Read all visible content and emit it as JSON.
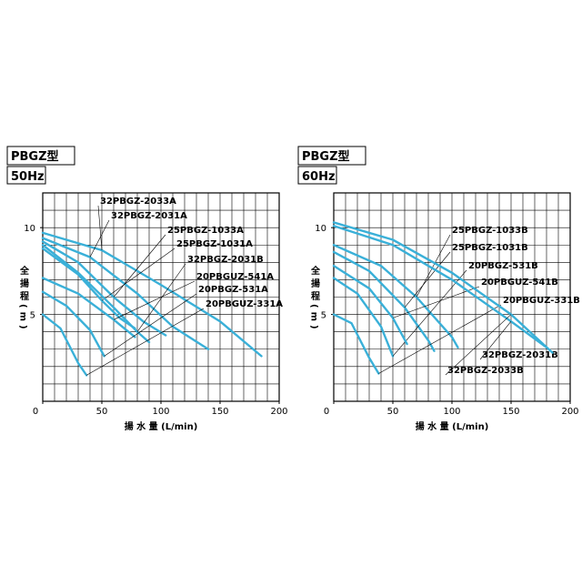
{
  "chart_data": [
    {
      "type": "line",
      "title": "PBGZ型",
      "subtitle": "50Hz",
      "xlabel": "揚 水 量 (L/min)",
      "ylabel": "全揚程(m)",
      "xlim": [
        0,
        200
      ],
      "ylim": [
        0,
        12
      ],
      "xticks": [
        0,
        50,
        100,
        150,
        200
      ],
      "yticks": [
        5,
        10
      ],
      "xgrid": [
        10,
        20,
        30,
        40,
        50,
        60,
        70,
        80,
        90,
        100,
        110,
        120,
        130,
        140,
        150,
        160,
        170,
        180,
        190
      ],
      "ygrid": [
        1,
        2,
        3,
        4,
        5,
        6,
        7,
        8,
        9,
        10,
        11
      ],
      "series": [
        {
          "name": "32PBGZ-2033A",
          "color": "#3ab0d8",
          "x": [
            0,
            50,
            100,
            150,
            185
          ],
          "values": [
            9.7,
            8.7,
            6.7,
            4.6,
            2.6
          ]
        },
        {
          "name": "32PBGZ-2031A",
          "color": "#3ab0d8",
          "x": [
            0,
            40,
            80,
            110,
            140
          ],
          "values": [
            9.4,
            8.3,
            6.2,
            4.3,
            3.0
          ]
        },
        {
          "name": "25PBGZ-1033A",
          "color": "#3ab0d8",
          "x": [
            0,
            30,
            60,
            85,
            104
          ],
          "values": [
            9.2,
            8.0,
            6.0,
            4.6,
            3.8
          ]
        },
        {
          "name": "25PBGZ-1031A",
          "color": "#3ab0d8",
          "x": [
            0,
            30,
            50,
            65,
            78
          ],
          "values": [
            8.8,
            7.3,
            5.8,
            4.8,
            4.2
          ]
        },
        {
          "name": "32PBGZ-2031B",
          "color": "#3ab0d8",
          "x": [
            0,
            30,
            60,
            80,
            90
          ],
          "values": [
            9.0,
            7.4,
            5.4,
            4.0,
            3.4
          ]
        },
        {
          "name": "20PBGUZ-541A",
          "color": "#3ab0d8",
          "x": [
            0,
            30,
            60,
            78
          ],
          "values": [
            7.1,
            6.2,
            4.7,
            3.7
          ]
        },
        {
          "name": "20PBGZ-531A",
          "color": "#3ab0d8",
          "x": [
            0,
            20,
            40,
            52
          ],
          "values": [
            6.3,
            5.5,
            4.1,
            2.6
          ]
        },
        {
          "name": "20PBGUZ-331A",
          "color": "#3ab0d8",
          "x": [
            0,
            15,
            30,
            37
          ],
          "values": [
            5.0,
            4.2,
            2.2,
            1.5
          ]
        }
      ]
    },
    {
      "type": "line",
      "title": "PBGZ型",
      "subtitle": "60Hz",
      "xlabel": "揚 水 量 (L/min)",
      "ylabel": "全揚程(m)",
      "xlim": [
        0,
        200
      ],
      "ylim": [
        0,
        12
      ],
      "xticks": [
        0,
        50,
        100,
        150,
        200
      ],
      "yticks": [
        5,
        10
      ],
      "xgrid": [
        10,
        20,
        30,
        40,
        50,
        60,
        70,
        80,
        90,
        100,
        110,
        120,
        130,
        140,
        150,
        160,
        170,
        180,
        190
      ],
      "ygrid": [
        1,
        2,
        3,
        4,
        5,
        6,
        7,
        8,
        9,
        10,
        11
      ],
      "series": [
        {
          "name": "25PBGZ-1033B",
          "color": "#3ab0d8",
          "x": [
            0,
            40,
            70,
            100,
            105
          ],
          "values": [
            9.0,
            7.8,
            6.0,
            3.7,
            3.1
          ]
        },
        {
          "name": "25PBGZ-1031B",
          "color": "#3ab0d8",
          "x": [
            0,
            30,
            60,
            80,
            85
          ],
          "values": [
            8.6,
            7.5,
            5.4,
            3.5,
            2.9
          ]
        },
        {
          "name": "20PBGZ-531B",
          "color": "#3ab0d8",
          "x": [
            0,
            20,
            40,
            50
          ],
          "values": [
            7.1,
            6.2,
            4.3,
            2.6
          ]
        },
        {
          "name": "20PBGUZ-541B",
          "color": "#3ab0d8",
          "x": [
            0,
            30,
            50,
            62
          ],
          "values": [
            7.8,
            6.5,
            4.8,
            3.3
          ]
        },
        {
          "name": "20PBGUZ-331B",
          "color": "#3ab0d8",
          "x": [
            0,
            15,
            30,
            38
          ],
          "values": [
            5.0,
            4.5,
            2.5,
            1.6
          ]
        },
        {
          "name": "32PBGZ-2031B",
          "color": "#3ab0d8",
          "x": [
            0,
            50,
            100,
            150,
            180
          ],
          "values": [
            10.1,
            9.0,
            7.0,
            4.6,
            3.1
          ]
        },
        {
          "name": "32PBGZ-2033B",
          "color": "#3ab0d8",
          "x": [
            0,
            50,
            100,
            150,
            185
          ],
          "values": [
            10.3,
            9.3,
            7.4,
            5.0,
            2.8
          ]
        }
      ]
    }
  ]
}
